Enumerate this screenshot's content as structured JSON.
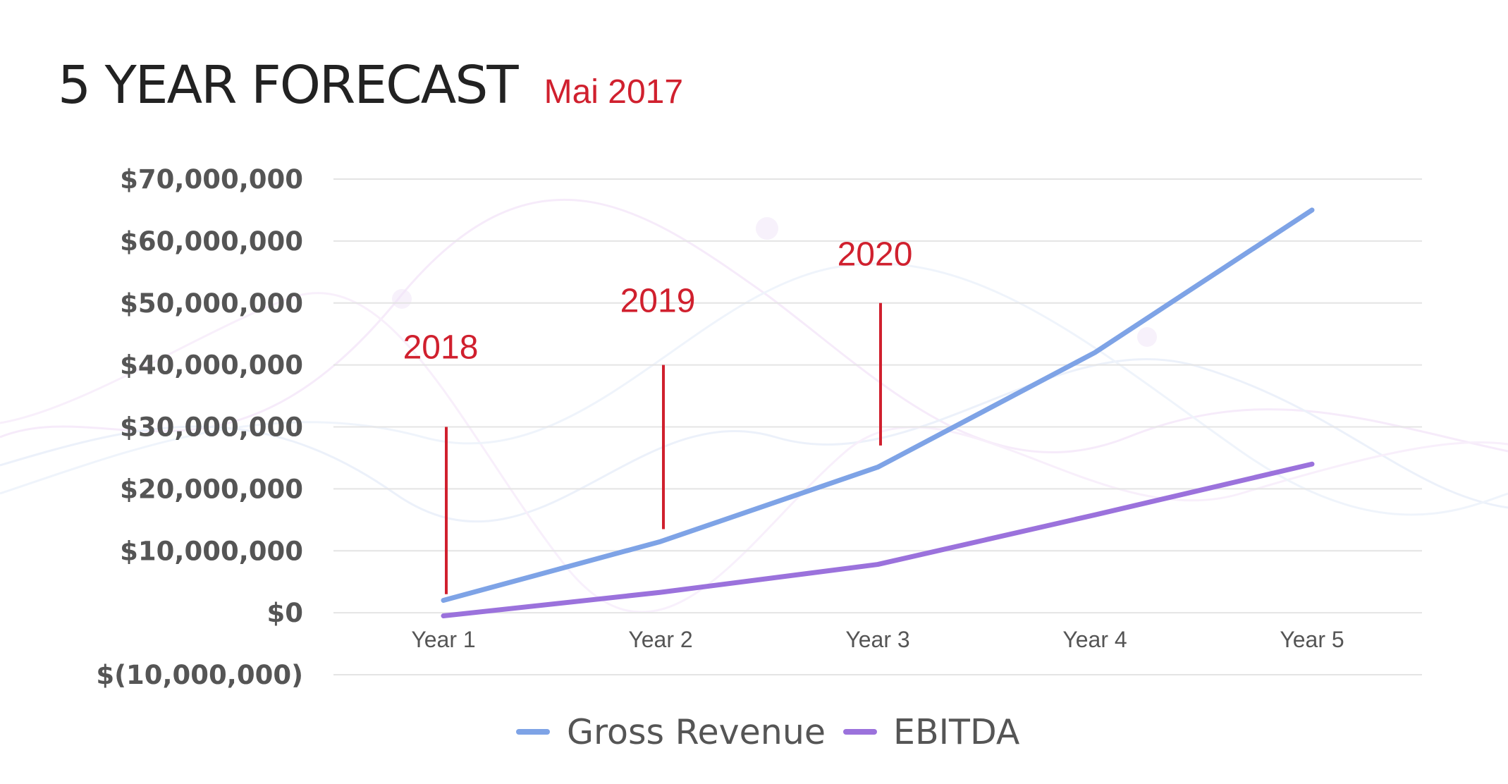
{
  "header": {
    "title": "5 YEAR FORECAST",
    "subtitle": "Mai 2017"
  },
  "colors": {
    "gross_revenue": "#7ea3e6",
    "ebitda": "#9b72dc",
    "annotation": "#d0202e",
    "grid": "#e4e4e4"
  },
  "chart_data": {
    "type": "line",
    "title": "5 YEAR FORECAST",
    "xlabel": "",
    "ylabel": "",
    "categories": [
      "Year 1",
      "Year 2",
      "Year 3",
      "Year 4",
      "Year 5"
    ],
    "series": [
      {
        "name": "Gross Revenue",
        "values": [
          2000000,
          11500000,
          23500000,
          42000000,
          65000000
        ]
      },
      {
        "name": "EBITDA",
        "values": [
          -500000,
          3300000,
          7800000,
          15800000,
          24000000
        ]
      }
    ],
    "ylim": [
      -10000000,
      70000000
    ],
    "yticks": [
      70000000,
      60000000,
      50000000,
      40000000,
      30000000,
      20000000,
      10000000,
      0,
      -10000000
    ],
    "ytick_labels": [
      "$70,000,000",
      "$60,000,000",
      "$50,000,000",
      "$40,000,000",
      "$30,000,000",
      "$20,000,000",
      "$10,000,000",
      "$0",
      "$(10,000,000)"
    ],
    "grid": true,
    "legend_position": "bottom-center",
    "annotations": [
      {
        "label": "2018",
        "x_category": 0,
        "y_from": 3000000,
        "y_to": 30000000,
        "label_y": 43000000
      },
      {
        "label": "2019",
        "x_category": 1,
        "y_from": 13500000,
        "y_to": 40000000,
        "label_y": 50500000
      },
      {
        "label": "2020",
        "x_category": 2,
        "y_from": 27000000,
        "y_to": 50000000,
        "label_y": 58000000
      }
    ]
  }
}
